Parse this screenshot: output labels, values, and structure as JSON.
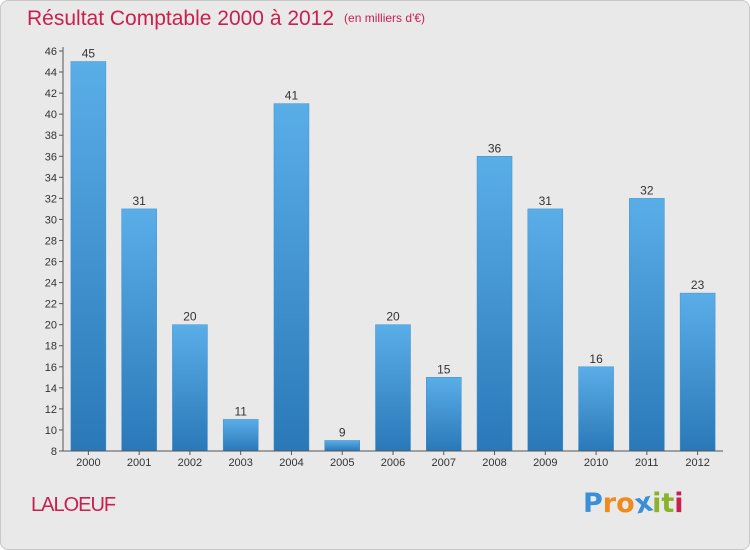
{
  "header": {
    "title": "Résultat Comptable 2000 à 2012",
    "subtitle": "(en milliers d'€)"
  },
  "footer": {
    "commune": "LALOEUF",
    "logo_text": "Proxiti",
    "logo_letters": [
      "P",
      "r",
      "o",
      "x",
      "i",
      "t",
      "i"
    ],
    "logo_colors": [
      "#3a8fd6",
      "#f08a1c",
      "#f08a1c",
      "#3a8fd6",
      "#88b32a",
      "#88b32a",
      "#c8204f"
    ]
  },
  "colors": {
    "bar_top": "#5aaee8",
    "bar_bottom": "#2a78b8",
    "axis": "#555555",
    "label": "#333333"
  },
  "chart_data": {
    "type": "bar",
    "title": "Résultat Comptable 2000 à 2012",
    "subtitle": "(en milliers d'€)",
    "xlabel": "",
    "ylabel": "",
    "categories": [
      "2000",
      "2001",
      "2002",
      "2003",
      "2004",
      "2005",
      "2006",
      "2007",
      "2008",
      "2009",
      "2010",
      "2011",
      "2012"
    ],
    "values": [
      45,
      31,
      20,
      11,
      41,
      9,
      20,
      15,
      36,
      31,
      16,
      32,
      23
    ],
    "ylim": [
      8,
      46
    ],
    "yticks": [
      8,
      10,
      12,
      14,
      16,
      18,
      20,
      22,
      24,
      26,
      28,
      30,
      32,
      34,
      36,
      38,
      40,
      42,
      44,
      46
    ],
    "grid": false,
    "legend": "none"
  }
}
